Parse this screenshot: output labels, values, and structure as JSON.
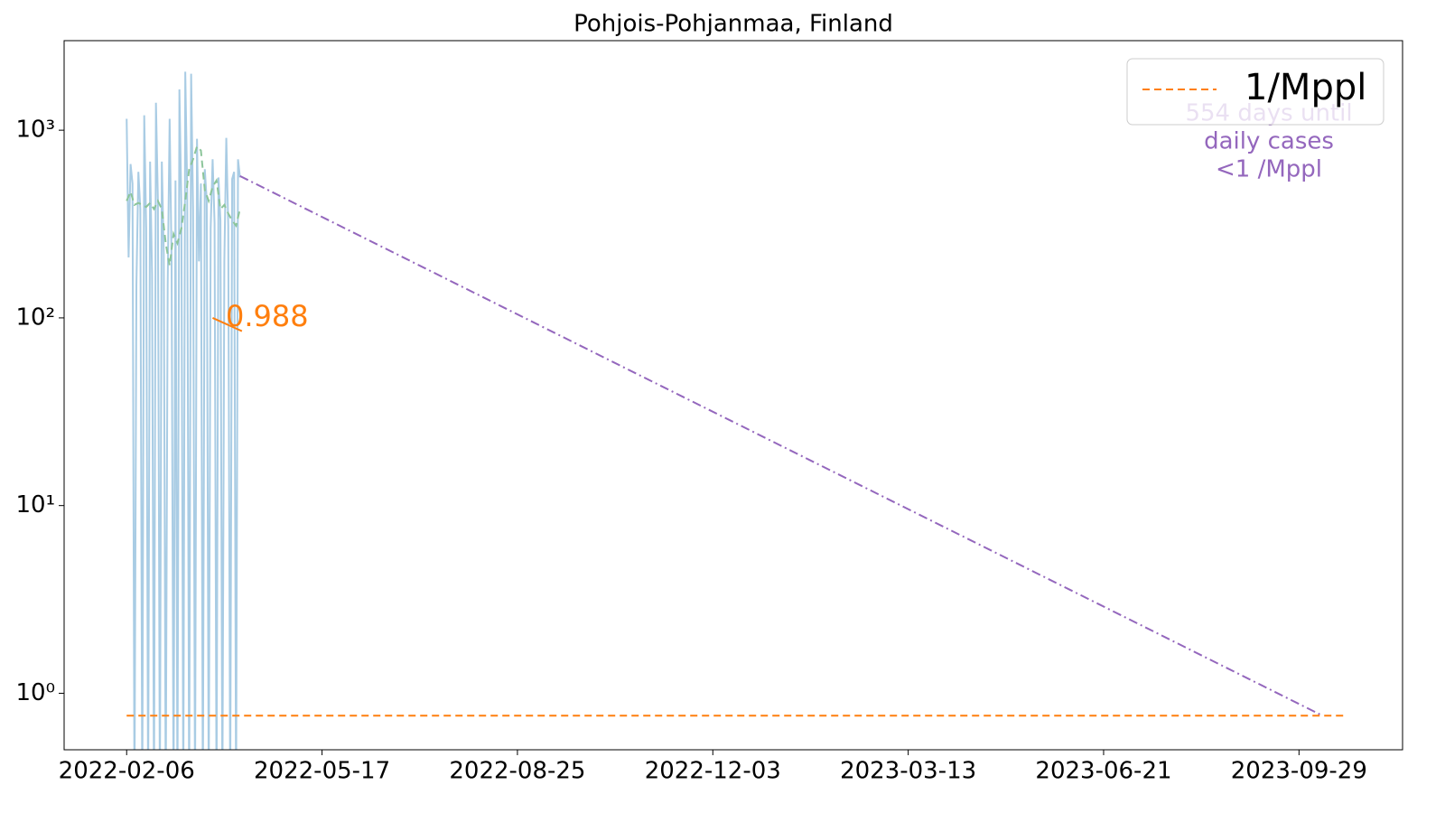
{
  "chart_data": {
    "type": "line",
    "title": "Pohjois-Pohjanmaa, Finland",
    "log_scale_y": true,
    "xlim": [
      "2022-01-05",
      "2023-11-21"
    ],
    "xticks": [
      "2022-02-06",
      "2022-05-17",
      "2022-08-25",
      "2022-12-03",
      "2023-03-13",
      "2023-06-21",
      "2023-09-29"
    ],
    "ylim": [
      0.5,
      3000
    ],
    "yticks": [
      {
        "value": 1,
        "label": "10⁰"
      },
      {
        "value": 10,
        "label": "10¹"
      },
      {
        "value": 100,
        "label": "10²"
      },
      {
        "value": 1000,
        "label": "10³"
      }
    ],
    "legend_position": "upper right",
    "series": [
      {
        "color": "#a9cce4",
        "style": "solid",
        "x": [
          "2022-02-06",
          "2022-02-07",
          "2022-02-08",
          "2022-02-09",
          "2022-02-10",
          "2022-02-11",
          "2022-02-12",
          "2022-02-13",
          "2022-02-14",
          "2022-02-15",
          "2022-02-16",
          "2022-02-17",
          "2022-02-18",
          "2022-02-19",
          "2022-02-20",
          "2022-02-21",
          "2022-02-22",
          "2022-02-23",
          "2022-02-24",
          "2022-02-25",
          "2022-02-26",
          "2022-02-27",
          "2022-02-28",
          "2022-03-01",
          "2022-03-02",
          "2022-03-03",
          "2022-03-04",
          "2022-03-05",
          "2022-03-06",
          "2022-03-07",
          "2022-03-08",
          "2022-03-09",
          "2022-03-10",
          "2022-03-11",
          "2022-03-12",
          "2022-03-13",
          "2022-03-14",
          "2022-03-15",
          "2022-03-16",
          "2022-03-17",
          "2022-03-18",
          "2022-03-19",
          "2022-03-20",
          "2022-03-21",
          "2022-03-22",
          "2022-03-23",
          "2022-03-24",
          "2022-03-25",
          "2022-03-26",
          "2022-03-27",
          "2022-03-28",
          "2022-03-29",
          "2022-03-30",
          "2022-03-31",
          "2022-04-01",
          "2022-04-02",
          "2022-04-03",
          "2022-04-04",
          "2022-04-05"
        ],
        "values": [
          1150,
          210,
          660,
          520,
          0,
          150,
          600,
          380,
          0,
          1200,
          300,
          0,
          680,
          170,
          0,
          1400,
          420,
          0,
          680,
          220,
          0,
          150,
          1150,
          200,
          0,
          540,
          0,
          1650,
          400,
          0,
          2050,
          480,
          0,
          2000,
          380,
          0,
          900,
          200,
          520,
          0,
          620,
          420,
          0,
          300,
          700,
          320,
          0,
          560,
          330,
          0,
          200,
          910,
          310,
          0,
          550,
          600,
          0,
          700,
          560
        ]
      },
      {
        "color": "#8cc59a",
        "style": "dashed",
        "x": [
          "2022-02-06",
          "2022-02-08",
          "2022-02-10",
          "2022-02-12",
          "2022-02-14",
          "2022-02-16",
          "2022-02-18",
          "2022-02-20",
          "2022-02-22",
          "2022-02-24",
          "2022-02-26",
          "2022-02-28",
          "2022-03-02",
          "2022-03-04",
          "2022-03-06",
          "2022-03-08",
          "2022-03-10",
          "2022-03-12",
          "2022-03-14",
          "2022-03-16",
          "2022-03-18",
          "2022-03-20",
          "2022-03-22",
          "2022-03-24",
          "2022-03-26",
          "2022-03-28",
          "2022-03-30",
          "2022-04-01",
          "2022-04-03",
          "2022-04-05"
        ],
        "values": [
          420,
          470,
          400,
          410,
          400,
          390,
          410,
          380,
          420,
          380,
          250,
          190,
          280,
          250,
          300,
          420,
          620,
          700,
          820,
          780,
          480,
          420,
          500,
          540,
          380,
          400,
          360,
          330,
          310,
          380
        ]
      },
      {
        "color": "#9467bd",
        "style": "dashdot",
        "x": [
          "2022-04-05",
          "2023-10-11"
        ],
        "values": [
          570,
          0.76
        ]
      },
      {
        "color": "#ff7f0e",
        "style": "solid",
        "x": [
          "2022-03-22",
          "2022-04-06"
        ],
        "values": [
          100,
          85
        ]
      },
      {
        "name": "1/Mppl",
        "color": "#ff7f0e",
        "style": "dashed",
        "x": [
          "2022-02-06",
          "2023-10-22"
        ],
        "values": [
          0.76,
          0.76
        ]
      }
    ],
    "annotations": [
      {
        "text": "0.988",
        "color": "#ff7f0e"
      },
      {
        "text": [
          "554 days until",
          "daily cases",
          "<1 /Mppl"
        ],
        "color": "#9467bd"
      }
    ]
  }
}
